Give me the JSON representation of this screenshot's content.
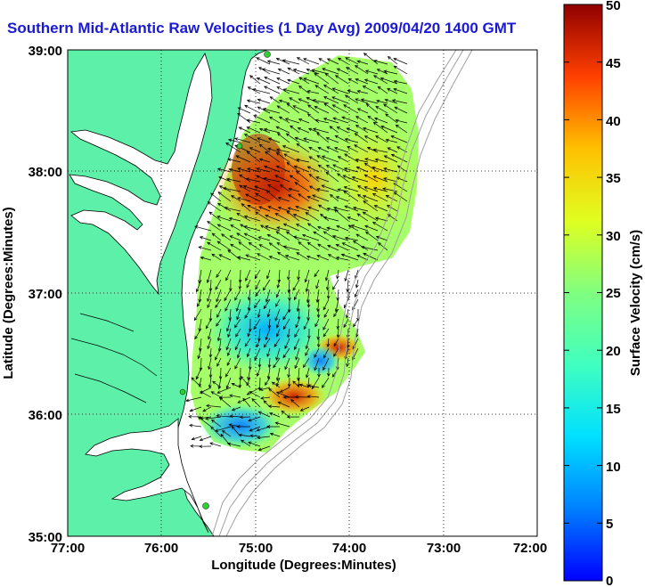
{
  "title": "Southern Mid-Atlantic Raw Velocities (1 Day Avg) 2009/04/20 1400 GMT",
  "axes": {
    "xlabel": "Longitude (Degrees:Minutes)",
    "ylabel": "Latitude (Degrees:Minutes)",
    "x_ticks": [
      "77:00",
      "76:00",
      "75:00",
      "74:00",
      "73:00",
      "72:00"
    ],
    "y_ticks": [
      "39:00",
      "38:00",
      "37:00",
      "36:00",
      "35:00"
    ],
    "grid": "dotted"
  },
  "colorbar": {
    "label": "Surface Velocity (cm/s)",
    "ticks": [
      "50",
      "45",
      "40",
      "35",
      "30",
      "25",
      "20",
      "15",
      "10",
      "5",
      "0"
    ],
    "min": 0,
    "max": 50,
    "colormap": "jet"
  },
  "colors": {
    "land": "#5cf0a8",
    "water": "#ffffff",
    "title": "#1a1ad6",
    "isobath": "#a0a0a0"
  }
}
